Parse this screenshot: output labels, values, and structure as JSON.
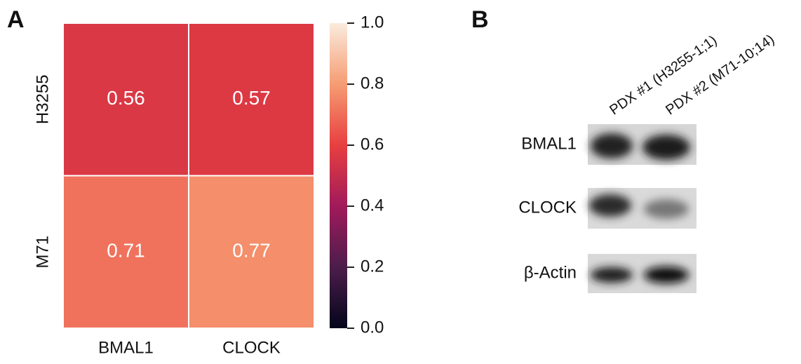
{
  "panels": {
    "a": "A",
    "b": "B"
  },
  "chart_data": {
    "type": "heatmap",
    "rows": [
      "H3255",
      "M71"
    ],
    "categories": [
      "BMAL1",
      "CLOCK"
    ],
    "values": [
      [
        0.56,
        0.57
      ],
      [
        0.71,
        0.77
      ]
    ],
    "colormap": "rocket",
    "zlim": [
      0,
      1
    ],
    "zticks": [
      {
        "value": 0,
        "label": "0.0"
      },
      0.2,
      0.4,
      0.6,
      0.8,
      {
        "value": 1,
        "label": "1.0"
      }
    ]
  },
  "blot": {
    "columns": [
      "PDX #1 (H3255-1;1)",
      "PDX #2 (M71-10;14)"
    ],
    "rows": [
      "BMAL1",
      "CLOCK",
      "β-Actin"
    ]
  }
}
